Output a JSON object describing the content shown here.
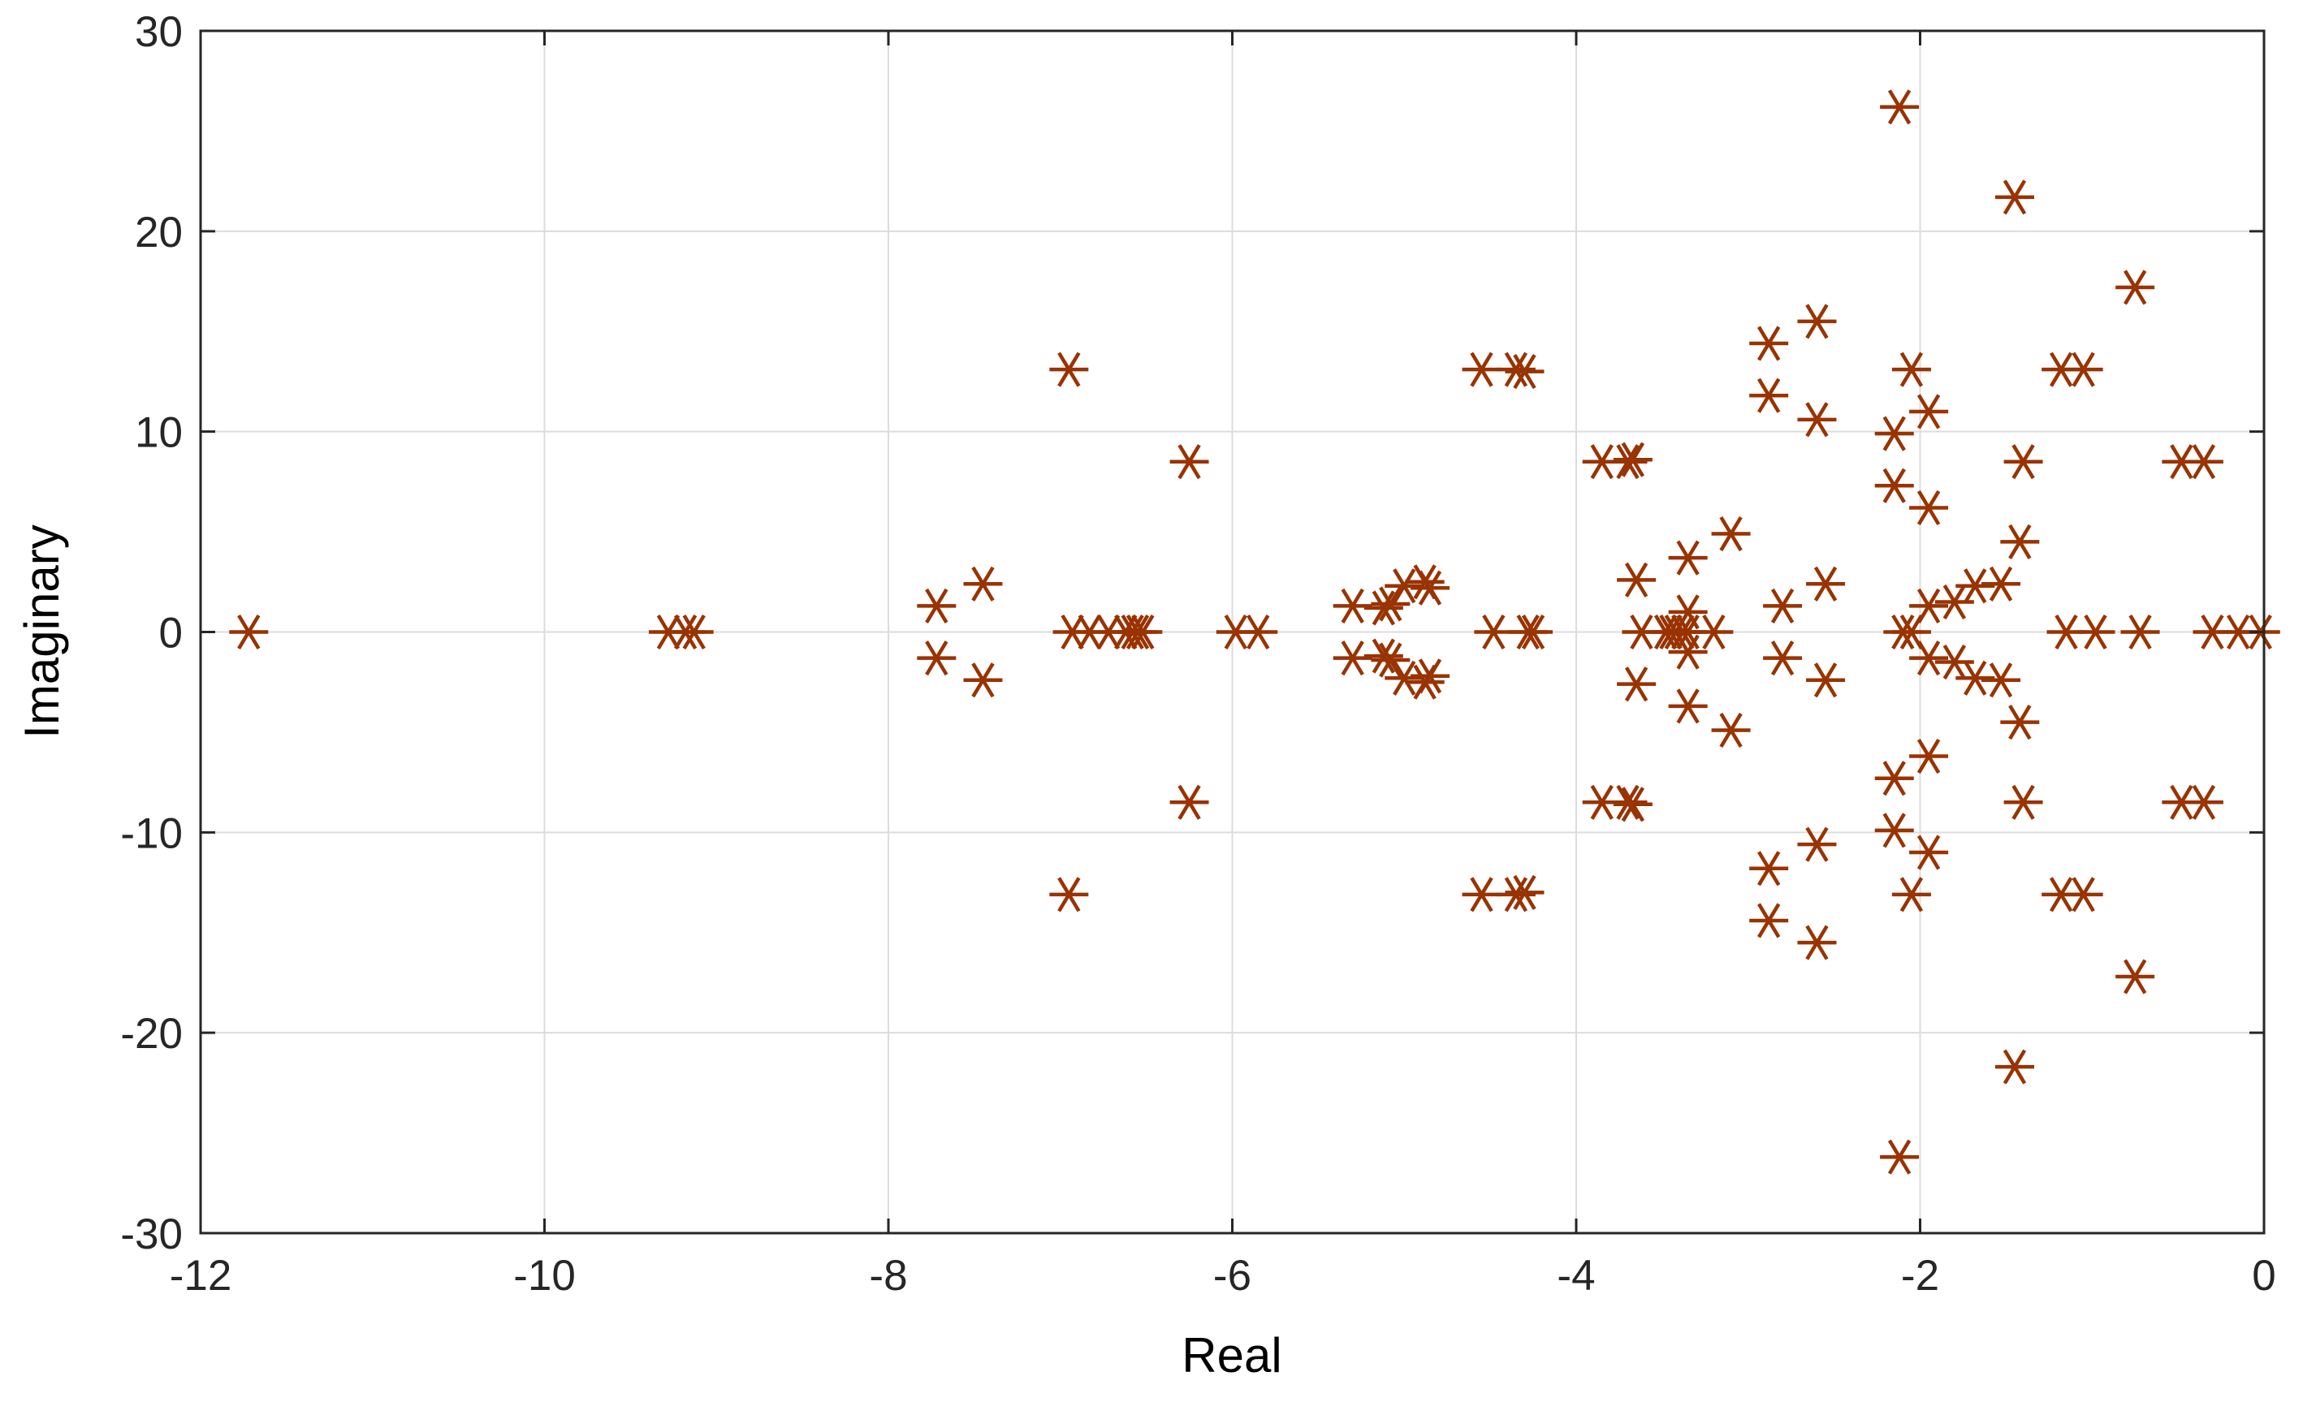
{
  "chart_data": {
    "type": "scatter",
    "title": "",
    "xlabel": "Real",
    "ylabel": "Imaginary",
    "xlim": [
      -12,
      0
    ],
    "ylim": [
      -30,
      30
    ],
    "xticks": [
      "-12",
      "-10",
      "-8",
      "-6",
      "-4",
      "-2",
      "0"
    ],
    "yticks": [
      "30",
      "20",
      "10",
      "0",
      "-10",
      "-20",
      "-30"
    ],
    "grid": true,
    "marker": "asterisk",
    "color": "#993300",
    "series": [
      {
        "points": [
          [
            -11.72,
            0
          ],
          [
            -9.28,
            0
          ],
          [
            -9.18,
            0
          ],
          [
            -9.13,
            0
          ],
          [
            -7.72,
            1.3
          ],
          [
            -7.72,
            -1.3
          ],
          [
            -7.45,
            2.4
          ],
          [
            -7.45,
            -2.4
          ],
          [
            -6.95,
            13.1
          ],
          [
            -6.95,
            -13.1
          ],
          [
            -6.93,
            0
          ],
          [
            -6.83,
            0
          ],
          [
            -6.72,
            0
          ],
          [
            -6.62,
            0
          ],
          [
            -6.58,
            0
          ],
          [
            -6.55,
            0
          ],
          [
            -6.52,
            0
          ],
          [
            -6.25,
            8.5
          ],
          [
            -6.25,
            -8.5
          ],
          [
            -5.98,
            0
          ],
          [
            -5.85,
            0
          ],
          [
            -5.3,
            1.3
          ],
          [
            -5.3,
            -1.3
          ],
          [
            -5.12,
            1.2
          ],
          [
            -5.12,
            -1.2
          ],
          [
            -5.08,
            1.4
          ],
          [
            -5.08,
            -1.4
          ],
          [
            -5.0,
            2.3
          ],
          [
            -5.0,
            -2.3
          ],
          [
            -4.88,
            2.5
          ],
          [
            -4.88,
            -2.5
          ],
          [
            -4.85,
            2.2
          ],
          [
            -4.85,
            -2.2
          ],
          [
            -4.55,
            13.1
          ],
          [
            -4.55,
            -13.1
          ],
          [
            -4.35,
            13.1
          ],
          [
            -4.35,
            -13.1
          ],
          [
            -4.3,
            13.0
          ],
          [
            -4.3,
            -13.0
          ],
          [
            -4.48,
            0
          ],
          [
            -4.28,
            0
          ],
          [
            -4.25,
            0
          ],
          [
            -3.85,
            8.5
          ],
          [
            -3.85,
            -8.5
          ],
          [
            -3.7,
            8.5
          ],
          [
            -3.7,
            -8.5
          ],
          [
            -3.67,
            8.6
          ],
          [
            -3.67,
            -8.6
          ],
          [
            -3.65,
            2.6
          ],
          [
            -3.65,
            -2.6
          ],
          [
            -3.62,
            0
          ],
          [
            -3.48,
            0
          ],
          [
            -3.45,
            0
          ],
          [
            -3.42,
            0
          ],
          [
            -3.38,
            0
          ],
          [
            -3.35,
            0
          ],
          [
            -3.35,
            3.7
          ],
          [
            -3.35,
            -3.7
          ],
          [
            -3.35,
            1.0
          ],
          [
            -3.35,
            -1.0
          ],
          [
            -3.2,
            0
          ],
          [
            -3.1,
            4.9
          ],
          [
            -3.1,
            -4.9
          ],
          [
            -2.88,
            14.4
          ],
          [
            -2.88,
            -14.4
          ],
          [
            -2.88,
            11.8
          ],
          [
            -2.88,
            -11.8
          ],
          [
            -2.8,
            1.3
          ],
          [
            -2.8,
            -1.3
          ],
          [
            -2.6,
            15.5
          ],
          [
            -2.6,
            -15.5
          ],
          [
            -2.6,
            10.6
          ],
          [
            -2.6,
            -10.6
          ],
          [
            -2.55,
            2.4
          ],
          [
            -2.55,
            -2.4
          ],
          [
            -2.12,
            26.2
          ],
          [
            -2.12,
            -26.2
          ],
          [
            -2.15,
            9.9
          ],
          [
            -2.15,
            -9.9
          ],
          [
            -2.15,
            7.3
          ],
          [
            -2.15,
            -7.3
          ],
          [
            -2.1,
            0
          ],
          [
            -2.05,
            0
          ],
          [
            -2.05,
            13.1
          ],
          [
            -2.05,
            -13.1
          ],
          [
            -1.95,
            11.0
          ],
          [
            -1.95,
            -11.0
          ],
          [
            -1.95,
            6.2
          ],
          [
            -1.95,
            -6.2
          ],
          [
            -1.95,
            1.3
          ],
          [
            -1.95,
            -1.3
          ],
          [
            -1.8,
            1.5
          ],
          [
            -1.8,
            -1.5
          ],
          [
            -1.68,
            2.3
          ],
          [
            -1.68,
            -2.3
          ],
          [
            -1.53,
            2.4
          ],
          [
            -1.53,
            -2.4
          ],
          [
            -1.45,
            21.7
          ],
          [
            -1.45,
            -21.7
          ],
          [
            -1.42,
            4.5
          ],
          [
            -1.42,
            -4.5
          ],
          [
            -1.4,
            8.5
          ],
          [
            -1.4,
            -8.5
          ],
          [
            -1.18,
            13.1
          ],
          [
            -1.18,
            -13.1
          ],
          [
            -1.15,
            0
          ],
          [
            -1.05,
            13.1
          ],
          [
            -1.05,
            -13.1
          ],
          [
            -0.98,
            0
          ],
          [
            -0.75,
            17.2
          ],
          [
            -0.75,
            -17.2
          ],
          [
            -0.72,
            0
          ],
          [
            -0.48,
            8.5
          ],
          [
            -0.48,
            -8.5
          ],
          [
            -0.35,
            8.5
          ],
          [
            -0.35,
            -8.5
          ],
          [
            -0.3,
            0
          ],
          [
            -0.15,
            0
          ],
          [
            -0.02,
            0
          ]
        ]
      }
    ]
  }
}
